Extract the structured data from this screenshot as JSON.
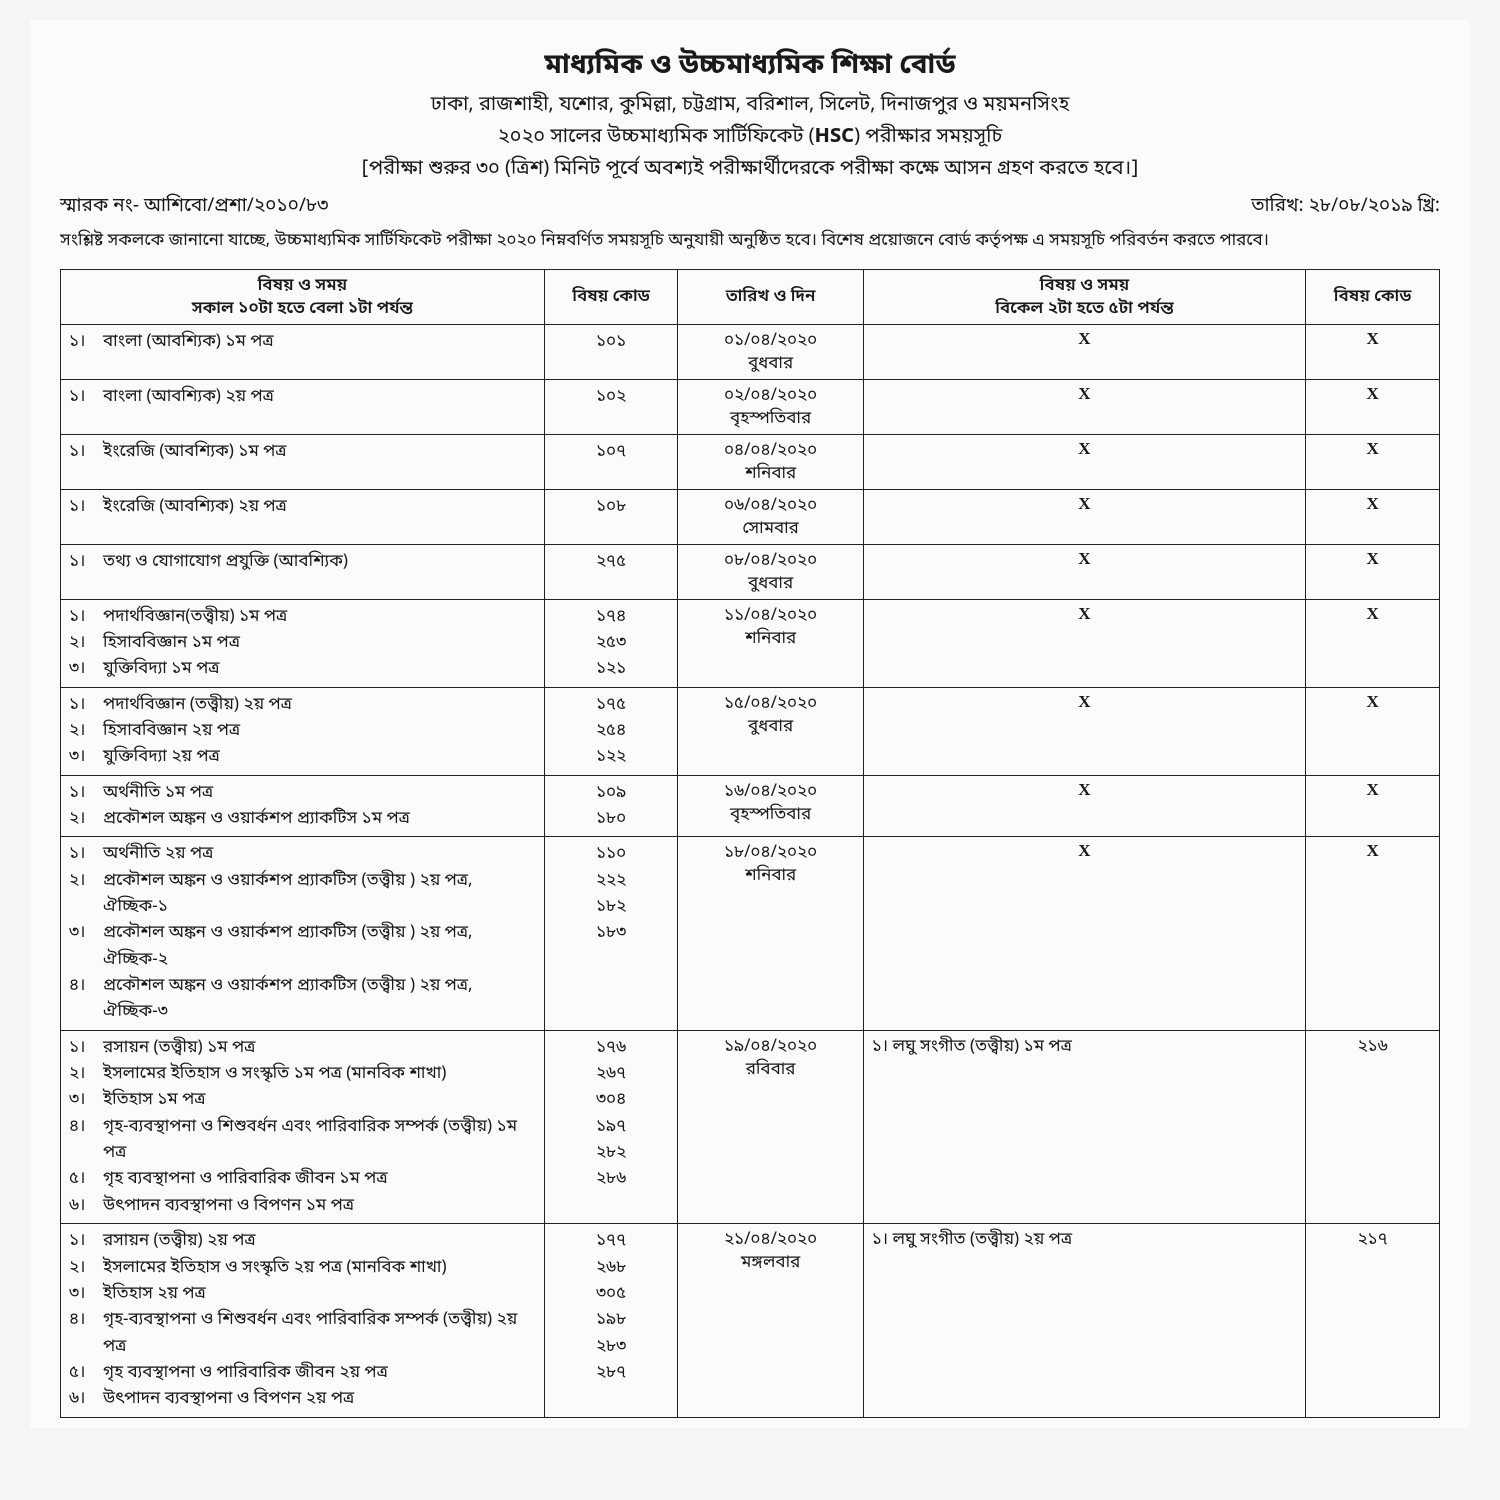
{
  "header": {
    "title": "মাধ্যমিক ও উচ্চমাধ্যমিক শিক্ষা বোর্ড",
    "line2": "ঢাকা, রাজশাহী, যশোর, কুমিল্লা, চট্টগ্রাম, বরিশাল, সিলেট, দিনাজপুর ও ময়মনসিংহ",
    "line3_a": "২০২০ সালের উচ্চমাধ্যমিক সার্টিফিকেট (",
    "line3_b": "HSC",
    "line3_c": ") পরীক্ষার সময়সূচি",
    "line4": "[পরীক্ষা শুরুর ৩০ (ত্রিশ) মিনিট পূর্বে অবশ্যই পরীক্ষার্থীদেরকে পরীক্ষা কক্ষে আসন গ্রহণ করতে হবে।]"
  },
  "memo": {
    "left": "স্মারক নং- আশিবো/প্রশা/২০১০/৮৩",
    "right": "তারিখ: ২৮/০৮/২০১৯ খ্রি:"
  },
  "notice": "সংশ্লিষ্ট সকলকে জানানো যাচ্ছে, উচ্চমাধ্যমিক সার্টিফিকেট পরীক্ষা ২০২০ নিম্নবর্ণিত সময়সূচি অনুযায়ী অনুষ্ঠিত হবে। বিশেষ প্রয়োজনে বোর্ড কর্তৃপক্ষ এ সময়সূচি পরিবর্তন করতে পারবে।",
  "table": {
    "head": {
      "c1a": "বিষয় ও সময়",
      "c1b": "সকাল ১০টা হতে বেলা ১টা পর্যন্ত",
      "c2": "বিষয় কোড",
      "c3": "তারিখ ও দিন",
      "c4a": "বিষয় ও সময়",
      "c4b": "বিকেল ২টা হতে ৫টা পর্যন্ত",
      "c5": "বিষয় কোড"
    },
    "rows": [
      {
        "subjects": [
          {
            "sn": "১।",
            "t": "বাংলা (আবশ্যিক) ১ম পত্র"
          }
        ],
        "codes": [
          "১০১"
        ],
        "date": "০১/০৪/২০২০",
        "day": "বুধবার",
        "subj2": "X",
        "code2": "X",
        "x": true
      },
      {
        "subjects": [
          {
            "sn": "১।",
            "t": "বাংলা (আবশ্যিক) ২য় পত্র"
          }
        ],
        "codes": [
          "১০২"
        ],
        "date": "০২/০৪/২০২০",
        "day": "বৃহস্পতিবার",
        "subj2": "X",
        "code2": "X",
        "x": true
      },
      {
        "subjects": [
          {
            "sn": "১।",
            "t": "ইংরেজি (আবশ্যিক) ১ম পত্র"
          }
        ],
        "codes": [
          "১০৭"
        ],
        "date": "০৪/০৪/২০২০",
        "day": "শনিবার",
        "subj2": "X",
        "code2": "X",
        "x": true
      },
      {
        "subjects": [
          {
            "sn": "১।",
            "t": "ইংরেজি (আবশ্যিক) ২য় পত্র"
          }
        ],
        "codes": [
          "১০৮"
        ],
        "date": "০৬/০৪/২০২০",
        "day": "সোমবার",
        "subj2": "X",
        "code2": "X",
        "x": true
      },
      {
        "subjects": [
          {
            "sn": "১।",
            "t": "তথ্য ও যোগাযোগ প্রযুক্তি (আবশ্যিক)"
          }
        ],
        "codes": [
          "২৭৫"
        ],
        "date": "০৮/০৪/২০২০",
        "day": "বুধবার",
        "subj2": "X",
        "code2": "X",
        "x": true
      },
      {
        "subjects": [
          {
            "sn": "১।",
            "t": "পদার্থবিজ্ঞান(তত্ত্বীয়) ১ম পত্র"
          },
          {
            "sn": "২।",
            "t": "হিসাববিজ্ঞান  ১ম পত্র"
          },
          {
            "sn": "৩।",
            "t": "যুক্তিবিদ্যা ১ম পত্র"
          }
        ],
        "codes": [
          "১৭৪",
          "২৫৩",
          "১২১"
        ],
        "date": "১১/০৪/২০২০",
        "day": "শনিবার",
        "subj2": "X",
        "code2": "X",
        "x": true
      },
      {
        "subjects": [
          {
            "sn": "১।",
            "t": "পদার্থবিজ্ঞান (তত্ত্বীয়) ২য় পত্র"
          },
          {
            "sn": "২।",
            "t": "হিসাববিজ্ঞান  ২য় পত্র"
          },
          {
            "sn": "৩।",
            "t": "যুক্তিবিদ্যা ২য় পত্র"
          }
        ],
        "codes": [
          "১৭৫",
          "২৫৪",
          "১২২"
        ],
        "date": "১৫/০৪/২০২০",
        "day": "বুধবার",
        "subj2": "X",
        "code2": "X",
        "x": true
      },
      {
        "subjects": [
          {
            "sn": "১।",
            "t": "অর্থনীতি ১ম পত্র"
          },
          {
            "sn": "২।",
            "t": "প্রকৌশল অঙ্কন ও ওয়ার্কশপ প্র্যাকটিস ১ম পত্র"
          }
        ],
        "codes": [
          "১০৯",
          "১৮০"
        ],
        "date": "১৬/০৪/২০২০",
        "day": "বৃহস্পতিবার",
        "subj2": "X",
        "code2": "X",
        "x": true
      },
      {
        "subjects": [
          {
            "sn": "১।",
            "t": "অর্থনীতি ২য় পত্র"
          },
          {
            "sn": "২।",
            "t": "প্রকৌশল অঙ্কন ও ওয়ার্কশপ প্র্যাকটিস (তত্ত্বীয় ) ২য় পত্র, ঐচ্ছিক-১"
          },
          {
            "sn": "৩।",
            "t": "প্রকৌশল অঙ্কন ও ওয়ার্কশপ প্র্যাকটিস (তত্ত্বীয় ) ২য় পত্র, ঐচ্ছিক-২"
          },
          {
            "sn": "৪।",
            "t": "প্রকৌশল অঙ্কন ও ওয়ার্কশপ প্র্যাকটিস (তত্ত্বীয় ) ২য় পত্র, ঐচ্ছিক-৩"
          }
        ],
        "codes": [
          "১১০",
          "২২২",
          "১৮২",
          "১৮৩"
        ],
        "date": "১৮/০৪/২০২০",
        "day": "শনিবার",
        "subj2": "X",
        "code2": "X",
        "x": true
      },
      {
        "subjects": [
          {
            "sn": "১।",
            "t": "রসায়ন (তত্ত্বীয়) ১ম পত্র"
          },
          {
            "sn": "২।",
            "t": "ইসলামের ইতিহাস ও সংস্কৃতি ১ম পত্র (মানবিক শাখা)"
          },
          {
            "sn": "৩।",
            "t": "ইতিহাস  ১ম পত্র"
          },
          {
            "sn": "৪।",
            "t": "গৃহ-ব্যবস্থাপনা ও শিশুবর্ধন এবং পারিবারিক সম্পর্ক (তত্ত্বীয়) ১ম পত্র"
          },
          {
            "sn": "৫।",
            "t": "গৃহ ব্যবস্থাপনা ও পারিবারিক জীবন ১ম পত্র"
          },
          {
            "sn": "৬।",
            "t": "উৎপাদন ব্যবস্থাপনা ও বিপণন ১ম পত্র"
          }
        ],
        "codes": [
          "১৭৬",
          "২৬৭",
          "৩০৪",
          "১৯৭",
          "২৮২",
          "২৮৬"
        ],
        "date": "১৯/০৪/২০২০",
        "day": "রবিবার",
        "subj2": "১।   লঘু  সংগীত (তত্ত্বীয়) ১ম পত্র",
        "code2": "২১৬",
        "x": false
      },
      {
        "subjects": [
          {
            "sn": "১।",
            "t": "রসায়ন (তত্ত্বীয়) ২য় পত্র"
          },
          {
            "sn": "২।",
            "t": "ইসলামের ইতিহাস ও সংস্কৃতি ২য় পত্র (মানবিক শাখা)"
          },
          {
            "sn": "৩।",
            "t": "ইতিহাস  ২য় পত্র"
          },
          {
            "sn": "৪।",
            "t": "গৃহ-ব্যবস্থাপনা ও শিশুবর্ধন এবং পারিবারিক সম্পর্ক (তত্ত্বীয়) ২য় পত্র"
          },
          {
            "sn": "৫।",
            "t": "গৃহ ব্যবস্থাপনা ও পারিবারিক জীবন ২য় পত্র"
          },
          {
            "sn": "৬।",
            "t": "উৎপাদন ব্যবস্থাপনা ও বিপণন ২য় পত্র"
          }
        ],
        "codes": [
          "১৭৭",
          "২৬৮",
          "৩০৫",
          "১৯৮",
          "২৮৩",
          "২৮৭"
        ],
        "date": "২১/০৪/২০২০",
        "day": "মঙ্গলবার",
        "subj2": "১।   লঘু  সংগীত (তত্ত্বীয়) ২য় পত্র",
        "code2": "২১৭",
        "x": false
      }
    ]
  },
  "style": {
    "border_color": "#222222",
    "page_bg": "#fbfbf9",
    "body_bg": "#f5f5f3",
    "text_color": "#1a1a1a",
    "title_fontsize": 28,
    "line_fontsize": 20,
    "row_fontsize": 17
  }
}
